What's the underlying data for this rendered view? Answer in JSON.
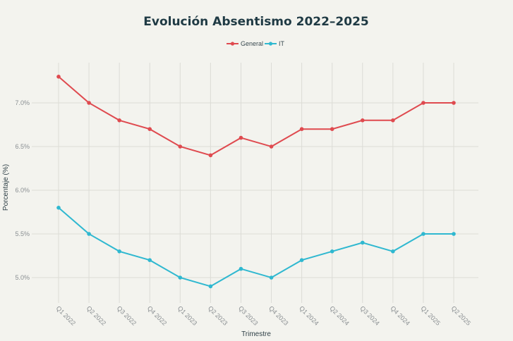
{
  "chart_data": {
    "type": "line",
    "title": "Evolución Absentismo 2022–2025",
    "xlabel": "Trimestre",
    "ylabel": "Porcentaje (%)",
    "categories": [
      "Q1 2022",
      "Q2 2022",
      "Q3 2022",
      "Q4 2022",
      "Q1 2023",
      "Q2 2023",
      "Q3 2023",
      "Q4 2023",
      "Q1 2024",
      "Q2 2024",
      "Q3 2024",
      "Q4 2024",
      "Q1 2025",
      "Q2 2025"
    ],
    "yticks": [
      5.0,
      5.5,
      6.0,
      6.5,
      7.0
    ],
    "ytick_labels": [
      "5.0%",
      "5.5%",
      "6.0%",
      "6.5%",
      "7.0%"
    ],
    "ylim": [
      4.8,
      7.45
    ],
    "grid": true,
    "legend_position": "top-center",
    "series": [
      {
        "name": "General",
        "color": "#df4a4f",
        "values": [
          7.3,
          7.0,
          6.8,
          6.7,
          6.5,
          6.4,
          6.6,
          6.5,
          6.7,
          6.7,
          6.8,
          6.8,
          7.0,
          7.0
        ]
      },
      {
        "name": "IT",
        "color": "#2fb8d0",
        "values": [
          5.8,
          5.5,
          5.3,
          5.2,
          5.0,
          4.9,
          5.1,
          5.0,
          5.2,
          5.3,
          5.4,
          5.3,
          5.5,
          5.5
        ]
      }
    ]
  }
}
